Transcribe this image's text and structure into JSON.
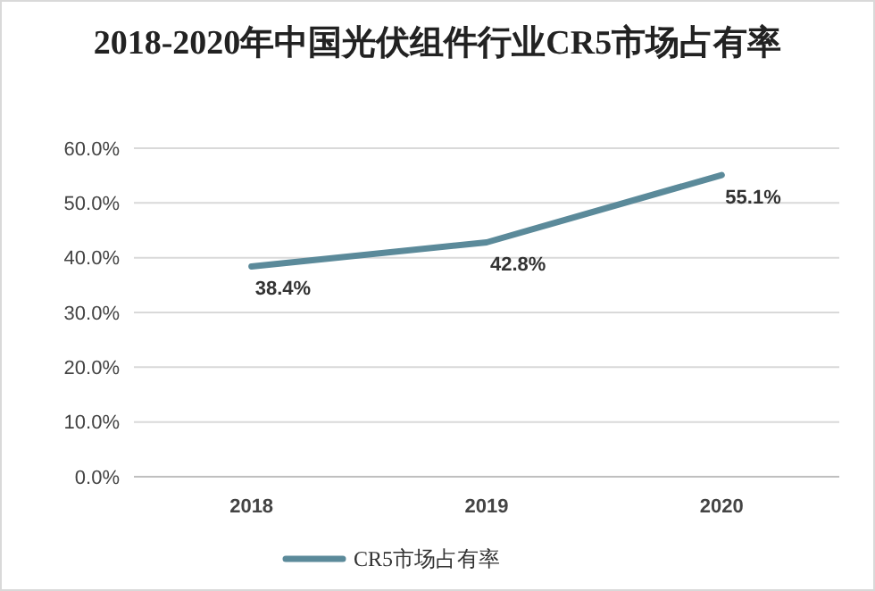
{
  "chart_data": {
    "type": "line",
    "title": "2018-2020年中国光伏组件行业CR5市场占有率",
    "categories": [
      "2018",
      "2019",
      "2020"
    ],
    "series": [
      {
        "name": "CR5市场占有率",
        "color": "#5b8a9a",
        "values": [
          38.4,
          42.8,
          55.1
        ],
        "value_labels": [
          "38.4%",
          "42.8%",
          "55.1%"
        ]
      }
    ],
    "ylim": [
      0,
      60
    ],
    "yticks": [
      {
        "value": 0,
        "label": "0.0%"
      },
      {
        "value": 10,
        "label": "10.0%"
      },
      {
        "value": 20,
        "label": "20.0%"
      },
      {
        "value": 30,
        "label": "30.0%"
      },
      {
        "value": 40,
        "label": "40.0%"
      },
      {
        "value": 50,
        "label": "50.0%"
      },
      {
        "value": 60,
        "label": "60.0%"
      }
    ],
    "grid": "y",
    "legend": "bottom",
    "marker": "none",
    "line_style": "solid"
  }
}
